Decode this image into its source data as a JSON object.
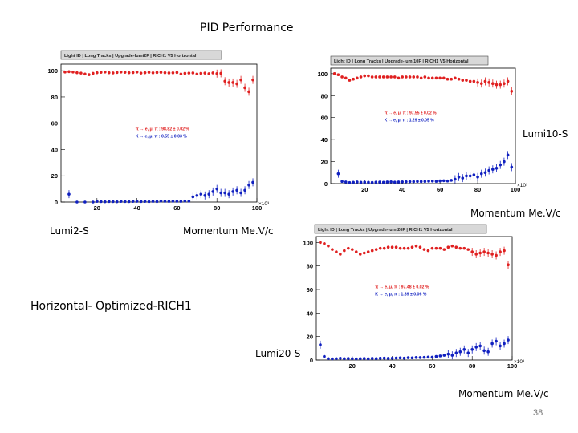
{
  "slide": {
    "title": "PID Performance",
    "subtitle": "Horizontal- Optimized-RICH1",
    "page_number": "38"
  },
  "labels": {
    "lumi2_name": "Lumi2-S",
    "lumi2_xlabel": "Momentum Me.V/c",
    "lumi10_name": "Lumi10-S",
    "lumi10_xlabel": "Momentum  Me.V/c",
    "lumi20_name": "Lumi20-S",
    "lumi20_xlabel": "Momentum  Me.V/c"
  },
  "colors": {
    "pion_series": "#e02020",
    "kaon_series": "#1020c0",
    "frame": "#000000",
    "header_bg": "#d8d8d8"
  },
  "chart_data": [
    {
      "type": "scatter",
      "title": "Light ID | Long Tracks | Upgrade-lumi2F | RICH1 V5 Horizontal",
      "xlim": [
        2,
        100
      ],
      "ylim": [
        0,
        105
      ],
      "x_multiplier": "×10³",
      "x_ticks": [
        20,
        40,
        60,
        80,
        100
      ],
      "y_ticks": [
        0,
        20,
        40,
        60,
        80,
        100
      ],
      "legend": [
        {
          "text": "π → e, μ, π : 98.82 ± 0.02 %",
          "series": "pion"
        },
        {
          "text": "K → e, μ, π : 0.55 ± 0.03 %",
          "series": "kaon"
        }
      ],
      "series": [
        {
          "name": "π → e, μ, π",
          "key": "pion",
          "x": [
            4,
            6,
            8,
            10,
            12,
            14,
            16,
            18,
            20,
            22,
            24,
            26,
            28,
            30,
            32,
            34,
            36,
            38,
            40,
            42,
            44,
            46,
            48,
            50,
            52,
            54,
            56,
            58,
            60,
            62,
            64,
            66,
            68,
            70,
            72,
            74,
            76,
            78,
            80,
            82,
            84,
            86,
            88,
            90,
            92,
            94,
            96,
            98
          ],
          "y": [
            99,
            99.3,
            99,
            98.5,
            98.2,
            97.5,
            97,
            98,
            98.5,
            98.8,
            99,
            98.5,
            98.3,
            98.7,
            99,
            98.8,
            98.5,
            98.6,
            99,
            98.2,
            98.5,
            98.8,
            98.4,
            98.7,
            98.8,
            98.5,
            98.3,
            98.4,
            98.7,
            97.5,
            98,
            98.2,
            98.3,
            97.5,
            98,
            98.2,
            97.7,
            98.3,
            97.8,
            98,
            92,
            91,
            91,
            90,
            93,
            87,
            84,
            93
          ]
        },
        {
          "name": "K → e, μ, π",
          "key": "kaon",
          "x": [
            6,
            10,
            14,
            18,
            20,
            22,
            24,
            26,
            28,
            30,
            32,
            34,
            36,
            38,
            40,
            42,
            44,
            46,
            48,
            50,
            52,
            54,
            56,
            58,
            60,
            62,
            64,
            66,
            68,
            70,
            72,
            74,
            76,
            78,
            80,
            82,
            84,
            86,
            88,
            90,
            92,
            94,
            96,
            98
          ],
          "y": [
            6,
            0,
            0,
            0,
            0.5,
            0.3,
            0.2,
            0.4,
            0.3,
            0.2,
            0.5,
            0.4,
            0.3,
            0.5,
            0.6,
            0.4,
            0.5,
            0.3,
            0.5,
            0.4,
            0.8,
            0.6,
            0.5,
            0.7,
            0.6,
            0.5,
            0.8,
            0.7,
            4,
            5,
            6,
            5,
            6,
            8,
            10,
            7,
            7,
            6,
            8,
            9,
            7,
            9,
            13,
            15
          ]
        }
      ]
    },
    {
      "type": "scatter",
      "title": "Light ID | Long Tracks | Upgrade-lumi10F | RICH1 V5 Horizontal",
      "xlim": [
        2,
        100
      ],
      "ylim": [
        0,
        105
      ],
      "x_multiplier": "×10³",
      "x_ticks": [
        20,
        40,
        60,
        80,
        100
      ],
      "y_ticks": [
        0,
        20,
        40,
        60,
        80,
        100
      ],
      "legend": [
        {
          "text": "π → e, μ, π : 97.55 ± 0.02 %",
          "series": "pion"
        },
        {
          "text": "K → e, μ, π : 1.29 ± 0.05 %",
          "series": "kaon"
        }
      ],
      "series": [
        {
          "name": "π → e, μ, π",
          "key": "pion",
          "x": [
            4,
            6,
            8,
            10,
            12,
            14,
            16,
            18,
            20,
            22,
            24,
            26,
            28,
            30,
            32,
            34,
            36,
            38,
            40,
            42,
            44,
            46,
            48,
            50,
            52,
            54,
            56,
            58,
            60,
            62,
            64,
            66,
            68,
            70,
            72,
            74,
            76,
            78,
            80,
            82,
            84,
            86,
            88,
            90,
            92,
            94,
            96,
            98
          ],
          "y": [
            100,
            99,
            97,
            96,
            94,
            95,
            96,
            97,
            98,
            98,
            97,
            97,
            97,
            97,
            97,
            97,
            97,
            96,
            97,
            97,
            97,
            97,
            97,
            96,
            97,
            96,
            96,
            96,
            96,
            96,
            95,
            95,
            96,
            95,
            94,
            94,
            93,
            93,
            92,
            91,
            93,
            92,
            91,
            90,
            90,
            91,
            93,
            84
          ]
        },
        {
          "name": "K → e, μ, π",
          "key": "kaon",
          "x": [
            6,
            8,
            10,
            12,
            14,
            16,
            18,
            20,
            22,
            24,
            26,
            28,
            30,
            32,
            34,
            36,
            38,
            40,
            42,
            44,
            46,
            48,
            50,
            52,
            54,
            56,
            58,
            60,
            62,
            64,
            66,
            68,
            70,
            72,
            74,
            76,
            78,
            80,
            82,
            84,
            86,
            88,
            90,
            92,
            94,
            96,
            98
          ],
          "y": [
            9,
            2,
            1.5,
            1,
            1.2,
            1.5,
            1.2,
            1.3,
            1.2,
            1.1,
            1.3,
            1.4,
            1.2,
            1.5,
            1.6,
            1.3,
            1.5,
            1.6,
            1.7,
            1.8,
            1.8,
            2,
            1.9,
            2,
            2.2,
            2.3,
            2.1,
            2.5,
            2.6,
            2.4,
            3,
            4,
            6,
            5,
            7,
            7,
            8,
            6,
            9,
            10,
            12,
            13,
            14,
            17,
            20,
            26,
            15
          ]
        }
      ]
    },
    {
      "type": "scatter",
      "title": "Light ID | Long Tracks | Upgrade-lumi20F | RICH1 V5 Horizontal",
      "xlim": [
        2,
        100
      ],
      "ylim": [
        0,
        105
      ],
      "x_multiplier": "×10³",
      "x_ticks": [
        20,
        40,
        60,
        80,
        100
      ],
      "y_ticks": [
        0,
        20,
        40,
        60,
        80,
        100
      ],
      "legend": [
        {
          "text": "π → e, μ, π : 97.48 ± 0.02 %",
          "series": "pion"
        },
        {
          "text": "K → e, μ, π : 1.89 ± 0.06 %",
          "series": "kaon"
        }
      ],
      "series": [
        {
          "name": "π → e, μ, π",
          "key": "pion",
          "x": [
            4,
            6,
            8,
            10,
            12,
            14,
            16,
            18,
            20,
            22,
            24,
            26,
            28,
            30,
            32,
            34,
            36,
            38,
            40,
            42,
            44,
            46,
            48,
            50,
            52,
            54,
            56,
            58,
            60,
            62,
            64,
            66,
            68,
            70,
            72,
            74,
            76,
            78,
            80,
            82,
            84,
            86,
            88,
            90,
            92,
            94,
            96,
            98
          ],
          "y": [
            100,
            99,
            97,
            94,
            92,
            90,
            93,
            95,
            94,
            92,
            90,
            91,
            92,
            93,
            94,
            95,
            95,
            96,
            96,
            96,
            95,
            95,
            95,
            96,
            97,
            96,
            94,
            93,
            95,
            95,
            95,
            94,
            96,
            97,
            96,
            95,
            95,
            94,
            92,
            90,
            91,
            92,
            91,
            90,
            89,
            92,
            93,
            81
          ]
        },
        {
          "name": "K → e, μ, π",
          "key": "kaon",
          "x": [
            4,
            6,
            8,
            10,
            12,
            14,
            16,
            18,
            20,
            22,
            24,
            26,
            28,
            30,
            32,
            34,
            36,
            38,
            40,
            42,
            44,
            46,
            48,
            50,
            52,
            54,
            56,
            58,
            60,
            62,
            64,
            66,
            68,
            70,
            72,
            74,
            76,
            78,
            80,
            82,
            84,
            86,
            88,
            90,
            92,
            94,
            96,
            98
          ],
          "y": [
            13,
            3,
            1.2,
            1,
            1.2,
            1.5,
            1.2,
            1.3,
            1.2,
            1,
            1.2,
            1.3,
            1.1,
            1.4,
            1.2,
            1.5,
            1.6,
            1.4,
            1.5,
            1.7,
            1.8,
            1.6,
            2,
            1.8,
            2.2,
            2.1,
            2.3,
            2.5,
            2.4,
            3,
            3.5,
            4,
            5,
            4,
            6,
            7,
            9,
            6,
            9,
            11,
            12,
            8,
            7,
            14,
            16,
            12,
            14,
            17
          ]
        }
      ]
    }
  ]
}
